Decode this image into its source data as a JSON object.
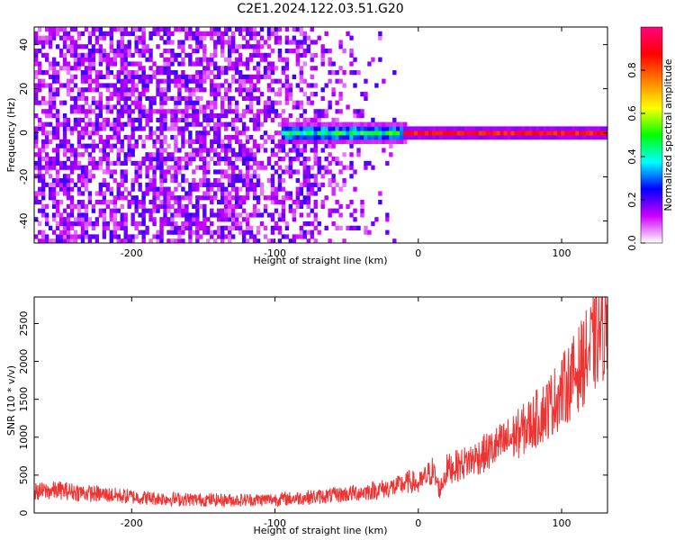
{
  "title": "C2E1.2024.122.03.51.G20",
  "chart_data": [
    {
      "type": "heatmap",
      "title": "C2E1.2024.122.03.51.G20",
      "xlabel": "Height of straight line (km)",
      "ylabel": "Frequency (Hz)",
      "xlim": [
        -268,
        132
      ],
      "ylim": [
        -50,
        48
      ],
      "x_ticks": [
        -200,
        -100,
        0,
        100
      ],
      "y_ticks": [
        -40,
        -20,
        0,
        20,
        40
      ],
      "colorbar": {
        "label": "Normalized spectral amplitude",
        "range": [
          0.0,
          1.0
        ],
        "ticks": [
          0.0,
          0.2,
          0.4,
          0.6,
          0.8
        ],
        "colormap": [
          "#ffffff",
          "#cc00ff",
          "#0000ff",
          "#00ffff",
          "#00ff00",
          "#ffff00",
          "#ff8000",
          "#ff0000",
          "#ff0080"
        ]
      },
      "features": [
        {
          "x_range": [
            -268,
            -100
          ],
          "freq_range": [
            -50,
            48
          ],
          "amplitude": 0.1,
          "desc": "broadband noise"
        },
        {
          "x_range": [
            -100,
            -10
          ],
          "freq_range": [
            -5,
            5
          ],
          "amplitude": 0.45,
          "desc": "emerging carrier"
        },
        {
          "x_range": [
            -10,
            132
          ],
          "freq_range": [
            -1,
            1
          ],
          "amplitude": 0.95,
          "desc": "carrier line"
        }
      ]
    },
    {
      "type": "line",
      "xlabel": "Height of straight line (km)",
      "ylabel": "SNR (10 * v/v)",
      "xlim": [
        -268,
        132
      ],
      "ylim": [
        0,
        2850
      ],
      "x_ticks": [
        -200,
        -100,
        0,
        100
      ],
      "y_ticks": [
        0,
        500,
        1000,
        1500,
        2000,
        2500
      ],
      "color": "#ee3333",
      "series": [
        {
          "x": [
            -268,
            -250,
            -230,
            -210,
            -190,
            -170,
            -150,
            -130,
            -110,
            -90,
            -70,
            -50,
            -30,
            -15,
            -5,
            0,
            5,
            10,
            15,
            20,
            30,
            40,
            50,
            60,
            70,
            80,
            90,
            100,
            110,
            120,
            132
          ],
          "y": [
            280,
            300,
            260,
            230,
            200,
            185,
            175,
            170,
            175,
            190,
            215,
            250,
            300,
            350,
            420,
            370,
            470,
            560,
            300,
            580,
            640,
            730,
            820,
            930,
            1050,
            1200,
            1380,
            1600,
            1850,
            2150,
            2550
          ]
        }
      ]
    }
  ]
}
